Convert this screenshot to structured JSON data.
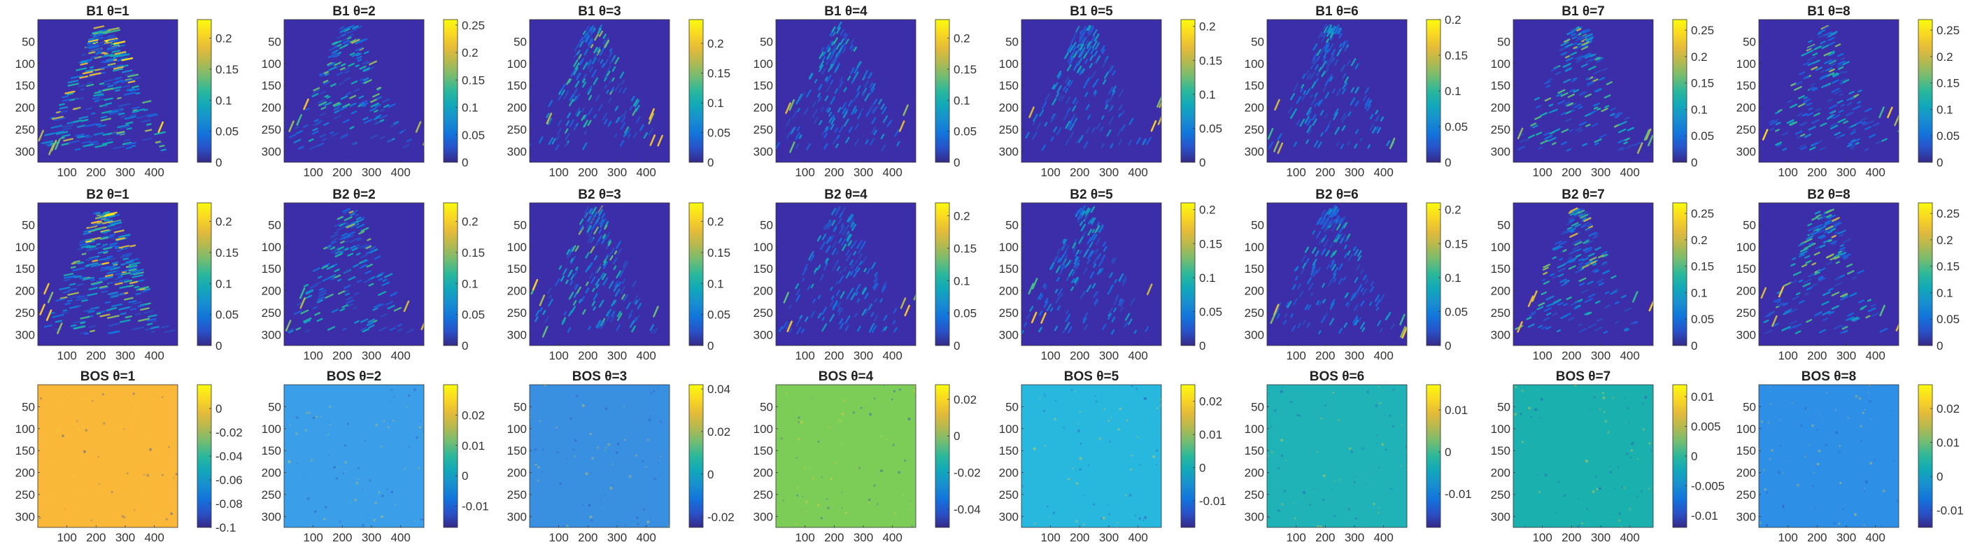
{
  "colors": {
    "background_low": "#3c2da8",
    "bos_row_colors": [
      "#f9b838",
      "#3a9fe8",
      "#3a90e0",
      "#7ccc58",
      "#28b8de",
      "#1fb2b6",
      "#1ab0ae",
      "#2d8fe6"
    ]
  },
  "colormap": "parula",
  "chart_data": [
    {
      "type": "heatmap",
      "title": "B1 θ=1",
      "row": 0,
      "col": 0,
      "xticks": [
        "100",
        "200",
        "300",
        "400"
      ],
      "yticks": [
        "50",
        "100",
        "150",
        "200",
        "250",
        "300"
      ],
      "colorbar": {
        "ticks": [
          "0.2",
          "0.15",
          "0.1",
          "0.05",
          "0"
        ],
        "clim": [
          0,
          0.23
        ]
      },
      "bg_level": 0.0
    },
    {
      "type": "heatmap",
      "title": "B1 θ=2",
      "row": 0,
      "col": 1,
      "xticks": [
        "100",
        "200",
        "300",
        "400"
      ],
      "yticks": [
        "50",
        "100",
        "150",
        "200",
        "250",
        "300"
      ],
      "colorbar": {
        "ticks": [
          "0.25",
          "0.2",
          "0.15",
          "0.1",
          "0.05",
          "0"
        ],
        "clim": [
          0,
          0.26
        ]
      },
      "bg_level": 0.0
    },
    {
      "type": "heatmap",
      "title": "B1 θ=3",
      "row": 0,
      "col": 2,
      "xticks": [
        "100",
        "200",
        "300",
        "400"
      ],
      "yticks": [
        "50",
        "100",
        "150",
        "200",
        "250",
        "300"
      ],
      "colorbar": {
        "ticks": [
          "0.2",
          "0.15",
          "0.1",
          "0.05",
          "0"
        ],
        "clim": [
          0,
          0.24
        ]
      },
      "bg_level": 0.0
    },
    {
      "type": "heatmap",
      "title": "B1 θ=4",
      "row": 0,
      "col": 3,
      "xticks": [
        "100",
        "200",
        "300",
        "400"
      ],
      "yticks": [
        "50",
        "100",
        "150",
        "200",
        "250",
        "300"
      ],
      "colorbar": {
        "ticks": [
          "0.2",
          "0.15",
          "0.1",
          "0.05",
          "0"
        ],
        "clim": [
          0,
          0.23
        ]
      },
      "bg_level": 0.0
    },
    {
      "type": "heatmap",
      "title": "B1 θ=5",
      "row": 0,
      "col": 4,
      "xticks": [
        "100",
        "200",
        "300",
        "400"
      ],
      "yticks": [
        "50",
        "100",
        "150",
        "200",
        "250",
        "300"
      ],
      "colorbar": {
        "ticks": [
          "0.2",
          "0.15",
          "0.1",
          "0.05",
          "0"
        ],
        "clim": [
          0,
          0.21
        ]
      },
      "bg_level": 0.0
    },
    {
      "type": "heatmap",
      "title": "B1 θ=6",
      "row": 0,
      "col": 5,
      "xticks": [
        "100",
        "200",
        "300",
        "400"
      ],
      "yticks": [
        "50",
        "100",
        "150",
        "200",
        "250",
        "300"
      ],
      "colorbar": {
        "ticks": [
          "0.2",
          "0.15",
          "0.1",
          "0.05",
          "0"
        ],
        "clim": [
          0,
          0.2
        ]
      },
      "bg_level": 0.0
    },
    {
      "type": "heatmap",
      "title": "B1 θ=7",
      "row": 0,
      "col": 6,
      "xticks": [
        "100",
        "200",
        "300",
        "400"
      ],
      "yticks": [
        "50",
        "100",
        "150",
        "200",
        "250",
        "300"
      ],
      "colorbar": {
        "ticks": [
          "0.25",
          "0.2",
          "0.15",
          "0.1",
          "0.05",
          "0"
        ],
        "clim": [
          0,
          0.27
        ]
      },
      "bg_level": 0.0
    },
    {
      "type": "heatmap",
      "title": "B1 θ=8",
      "row": 0,
      "col": 7,
      "xticks": [
        "100",
        "200",
        "300",
        "400"
      ],
      "yticks": [
        "50",
        "100",
        "150",
        "200",
        "250",
        "300"
      ],
      "colorbar": {
        "ticks": [
          "0.25",
          "0.2",
          "0.15",
          "0.1",
          "0.05",
          "0"
        ],
        "clim": [
          0,
          0.27
        ]
      },
      "bg_level": 0.0
    },
    {
      "type": "heatmap",
      "title": "B2 θ=1",
      "row": 1,
      "col": 0,
      "xticks": [
        "100",
        "200",
        "300",
        "400"
      ],
      "yticks": [
        "50",
        "100",
        "150",
        "200",
        "250",
        "300"
      ],
      "colorbar": {
        "ticks": [
          "0.2",
          "0.15",
          "0.1",
          "0.05",
          "0"
        ],
        "clim": [
          0,
          0.23
        ]
      },
      "bg_level": 0.0
    },
    {
      "type": "heatmap",
      "title": "B2 θ=2",
      "row": 1,
      "col": 1,
      "xticks": [
        "100",
        "200",
        "300",
        "400"
      ],
      "yticks": [
        "50",
        "100",
        "150",
        "200",
        "250",
        "300"
      ],
      "colorbar": {
        "ticks": [
          "0.2",
          "0.15",
          "0.1",
          "0.05",
          "0"
        ],
        "clim": [
          0,
          0.23
        ]
      },
      "bg_level": 0.0
    },
    {
      "type": "heatmap",
      "title": "B2 θ=3",
      "row": 1,
      "col": 2,
      "xticks": [
        "100",
        "200",
        "300",
        "400"
      ],
      "yticks": [
        "50",
        "100",
        "150",
        "200",
        "250",
        "300"
      ],
      "colorbar": {
        "ticks": [
          "0.2",
          "0.15",
          "0.1",
          "0.05",
          "0"
        ],
        "clim": [
          0,
          0.23
        ]
      },
      "bg_level": 0.0
    },
    {
      "type": "heatmap",
      "title": "B2 θ=4",
      "row": 1,
      "col": 3,
      "xticks": [
        "100",
        "200",
        "300",
        "400"
      ],
      "yticks": [
        "50",
        "100",
        "150",
        "200",
        "250",
        "300"
      ],
      "colorbar": {
        "ticks": [
          "0.2",
          "0.15",
          "0.1",
          "0.05",
          "0"
        ],
        "clim": [
          0,
          0.22
        ]
      },
      "bg_level": 0.0
    },
    {
      "type": "heatmap",
      "title": "B2 θ=5",
      "row": 1,
      "col": 4,
      "xticks": [
        "100",
        "200",
        "300",
        "400"
      ],
      "yticks": [
        "50",
        "100",
        "150",
        "200",
        "250",
        "300"
      ],
      "colorbar": {
        "ticks": [
          "0.2",
          "0.15",
          "0.1",
          "0.05",
          "0"
        ],
        "clim": [
          0,
          0.21
        ]
      },
      "bg_level": 0.0
    },
    {
      "type": "heatmap",
      "title": "B2 θ=6",
      "row": 1,
      "col": 5,
      "xticks": [
        "100",
        "200",
        "300",
        "400"
      ],
      "yticks": [
        "50",
        "100",
        "150",
        "200",
        "250",
        "300"
      ],
      "colorbar": {
        "ticks": [
          "0.2",
          "0.15",
          "0.1",
          "0.05",
          "0"
        ],
        "clim": [
          0,
          0.21
        ]
      },
      "bg_level": 0.0
    },
    {
      "type": "heatmap",
      "title": "B2 θ=7",
      "row": 1,
      "col": 6,
      "xticks": [
        "100",
        "200",
        "300",
        "400"
      ],
      "yticks": [
        "50",
        "100",
        "150",
        "200",
        "250",
        "300"
      ],
      "colorbar": {
        "ticks": [
          "0.25",
          "0.2",
          "0.15",
          "0.1",
          "0.05",
          "0"
        ],
        "clim": [
          0,
          0.27
        ]
      },
      "bg_level": 0.0
    },
    {
      "type": "heatmap",
      "title": "B2 θ=8",
      "row": 1,
      "col": 7,
      "xticks": [
        "100",
        "200",
        "300",
        "400"
      ],
      "yticks": [
        "50",
        "100",
        "150",
        "200",
        "250",
        "300"
      ],
      "colorbar": {
        "ticks": [
          "0.25",
          "0.2",
          "0.15",
          "0.1",
          "0.05",
          "0"
        ],
        "clim": [
          0,
          0.27
        ]
      },
      "bg_level": 0.0
    },
    {
      "type": "heatmap",
      "title": "BOS θ=1",
      "row": 2,
      "col": 0,
      "xticks": [
        "100",
        "200",
        "300",
        "400"
      ],
      "yticks": [
        "50",
        "100",
        "150",
        "200",
        "250",
        "300"
      ],
      "colorbar": {
        "ticks": [
          "0",
          "-0.02",
          "-0.04",
          "-0.06",
          "-0.08",
          "-0.1"
        ],
        "clim": [
          -0.1,
          0.02
        ]
      },
      "bg_level": 0.005
    },
    {
      "type": "heatmap",
      "title": "BOS θ=2",
      "row": 2,
      "col": 1,
      "xticks": [
        "100",
        "200",
        "300",
        "400"
      ],
      "yticks": [
        "50",
        "100",
        "150",
        "200",
        "250",
        "300"
      ],
      "colorbar": {
        "ticks": [
          "0.02",
          "0.01",
          "0",
          "-0.01"
        ],
        "clim": [
          -0.017,
          0.03
        ]
      },
      "bg_level": 0.0
    },
    {
      "type": "heatmap",
      "title": "BOS θ=3",
      "row": 2,
      "col": 2,
      "xticks": [
        "100",
        "200",
        "300",
        "400"
      ],
      "yticks": [
        "50",
        "100",
        "150",
        "200",
        "250",
        "300"
      ],
      "colorbar": {
        "ticks": [
          "0.04",
          "0.02",
          "0",
          "-0.02"
        ],
        "clim": [
          -0.025,
          0.042
        ]
      },
      "bg_level": 0.0
    },
    {
      "type": "heatmap",
      "title": "BOS θ=4",
      "row": 2,
      "col": 3,
      "xticks": [
        "100",
        "200",
        "300",
        "400"
      ],
      "yticks": [
        "50",
        "100",
        "150",
        "200",
        "250",
        "300"
      ],
      "colorbar": {
        "ticks": [
          "0.02",
          "0",
          "-0.02",
          "-0.04"
        ],
        "clim": [
          -0.05,
          0.028
        ]
      },
      "bg_level": 0.0
    },
    {
      "type": "heatmap",
      "title": "BOS θ=5",
      "row": 2,
      "col": 4,
      "xticks": [
        "100",
        "200",
        "300",
        "400"
      ],
      "yticks": [
        "50",
        "100",
        "150",
        "200",
        "250",
        "300"
      ],
      "colorbar": {
        "ticks": [
          "0.02",
          "0.01",
          "0",
          "-0.01"
        ],
        "clim": [
          -0.018,
          0.025
        ]
      },
      "bg_level": 0.0
    },
    {
      "type": "heatmap",
      "title": "BOS θ=6",
      "row": 2,
      "col": 5,
      "xticks": [
        "100",
        "200",
        "300",
        "400"
      ],
      "yticks": [
        "50",
        "100",
        "150",
        "200",
        "250",
        "300"
      ],
      "colorbar": {
        "ticks": [
          "0.01",
          "0",
          "-0.01"
        ],
        "clim": [
          -0.018,
          0.016
        ]
      },
      "bg_level": 0.0
    },
    {
      "type": "heatmap",
      "title": "BOS θ=7",
      "row": 2,
      "col": 6,
      "xticks": [
        "100",
        "200",
        "300",
        "400"
      ],
      "yticks": [
        "50",
        "100",
        "150",
        "200",
        "250",
        "300"
      ],
      "colorbar": {
        "ticks": [
          "0.01",
          "0.005",
          "0",
          "-0.005",
          "-0.01"
        ],
        "clim": [
          -0.012,
          0.012
        ]
      },
      "bg_level": 0.0
    },
    {
      "type": "heatmap",
      "title": "BOS θ=8",
      "row": 2,
      "col": 7,
      "xticks": [
        "100",
        "200",
        "300",
        "400"
      ],
      "yticks": [
        "50",
        "100",
        "150",
        "200",
        "250",
        "300"
      ],
      "colorbar": {
        "ticks": [
          "0.02",
          "0.01",
          "0",
          "-0.01"
        ],
        "clim": [
          -0.015,
          0.027
        ]
      },
      "bg_level": 0.0
    }
  ]
}
